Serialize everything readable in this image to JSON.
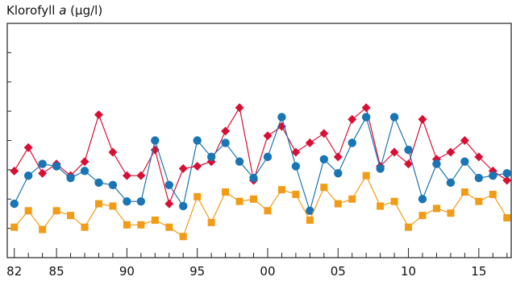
{
  "chart_data": {
    "type": "line",
    "title_prefix": "Klorofyll ",
    "title_italic": "a",
    "title_suffix": " (µg/l)",
    "xlim": [
      1981.5,
      2017.3
    ],
    "ylim": [
      0,
      10
    ],
    "y_gridlines": false,
    "x_tick_labels": [
      {
        "year": 1982,
        "label": "82"
      },
      {
        "year": 1985,
        "label": "85"
      },
      {
        "year": 1990,
        "label": "90"
      },
      {
        "year": 1995,
        "label": "95"
      },
      {
        "year": 2000,
        "label": "00"
      },
      {
        "year": 2005,
        "label": "05"
      },
      {
        "year": 2010,
        "label": "10"
      },
      {
        "year": 2015,
        "label": "15"
      }
    ],
    "x": [
      1982,
      1983,
      1984,
      1985,
      1986,
      1987,
      1988,
      1989,
      1990,
      1991,
      1992,
      1993,
      1994,
      1995,
      1996,
      1997,
      1998,
      1999,
      2000,
      2001,
      2002,
      2003,
      2004,
      2005,
      2006,
      2007,
      2008,
      2009,
      2010,
      2011,
      2012,
      2013,
      2014,
      2015,
      2016,
      2017
    ],
    "series": [
      {
        "color": "#d80f35",
        "marker": "diamond",
        "values": [
          3.7,
          4.7,
          3.6,
          4.0,
          3.5,
          4.1,
          6.1,
          4.5,
          3.5,
          3.5,
          4.6,
          2.3,
          3.8,
          3.9,
          4.1,
          5.4,
          6.4,
          3.3,
          5.2,
          5.6,
          4.5,
          4.9,
          5.3,
          4.3,
          5.9,
          6.4,
          3.9,
          4.5,
          4.0,
          5.9,
          4.2,
          4.5,
          5.0,
          4.3,
          3.7,
          3.3
        ]
      },
      {
        "color": "#1a75b4",
        "marker": "circle",
        "values": [
          2.3,
          3.5,
          4.0,
          3.9,
          3.4,
          3.7,
          3.2,
          3.1,
          2.4,
          2.4,
          5.0,
          3.1,
          2.2,
          5.0,
          4.3,
          4.9,
          4.1,
          3.4,
          4.3,
          6.0,
          3.9,
          2.0,
          4.2,
          3.6,
          4.9,
          6.0,
          3.8,
          6.0,
          4.6,
          2.5,
          4.0,
          3.2,
          4.1,
          3.4,
          3.5,
          3.6
        ]
      },
      {
        "color": "#f29b16",
        "marker": "square",
        "values": [
          1.3,
          2.0,
          1.2,
          2.0,
          1.8,
          1.3,
          2.3,
          2.2,
          1.4,
          1.4,
          1.6,
          1.3,
          0.9,
          2.6,
          1.5,
          2.8,
          2.4,
          2.5,
          2.0,
          2.9,
          2.7,
          1.6,
          3.0,
          2.3,
          2.5,
          3.5,
          2.2,
          2.4,
          1.3,
          1.8,
          2.1,
          1.9,
          2.8,
          2.4,
          2.7,
          1.7
        ]
      }
    ]
  }
}
